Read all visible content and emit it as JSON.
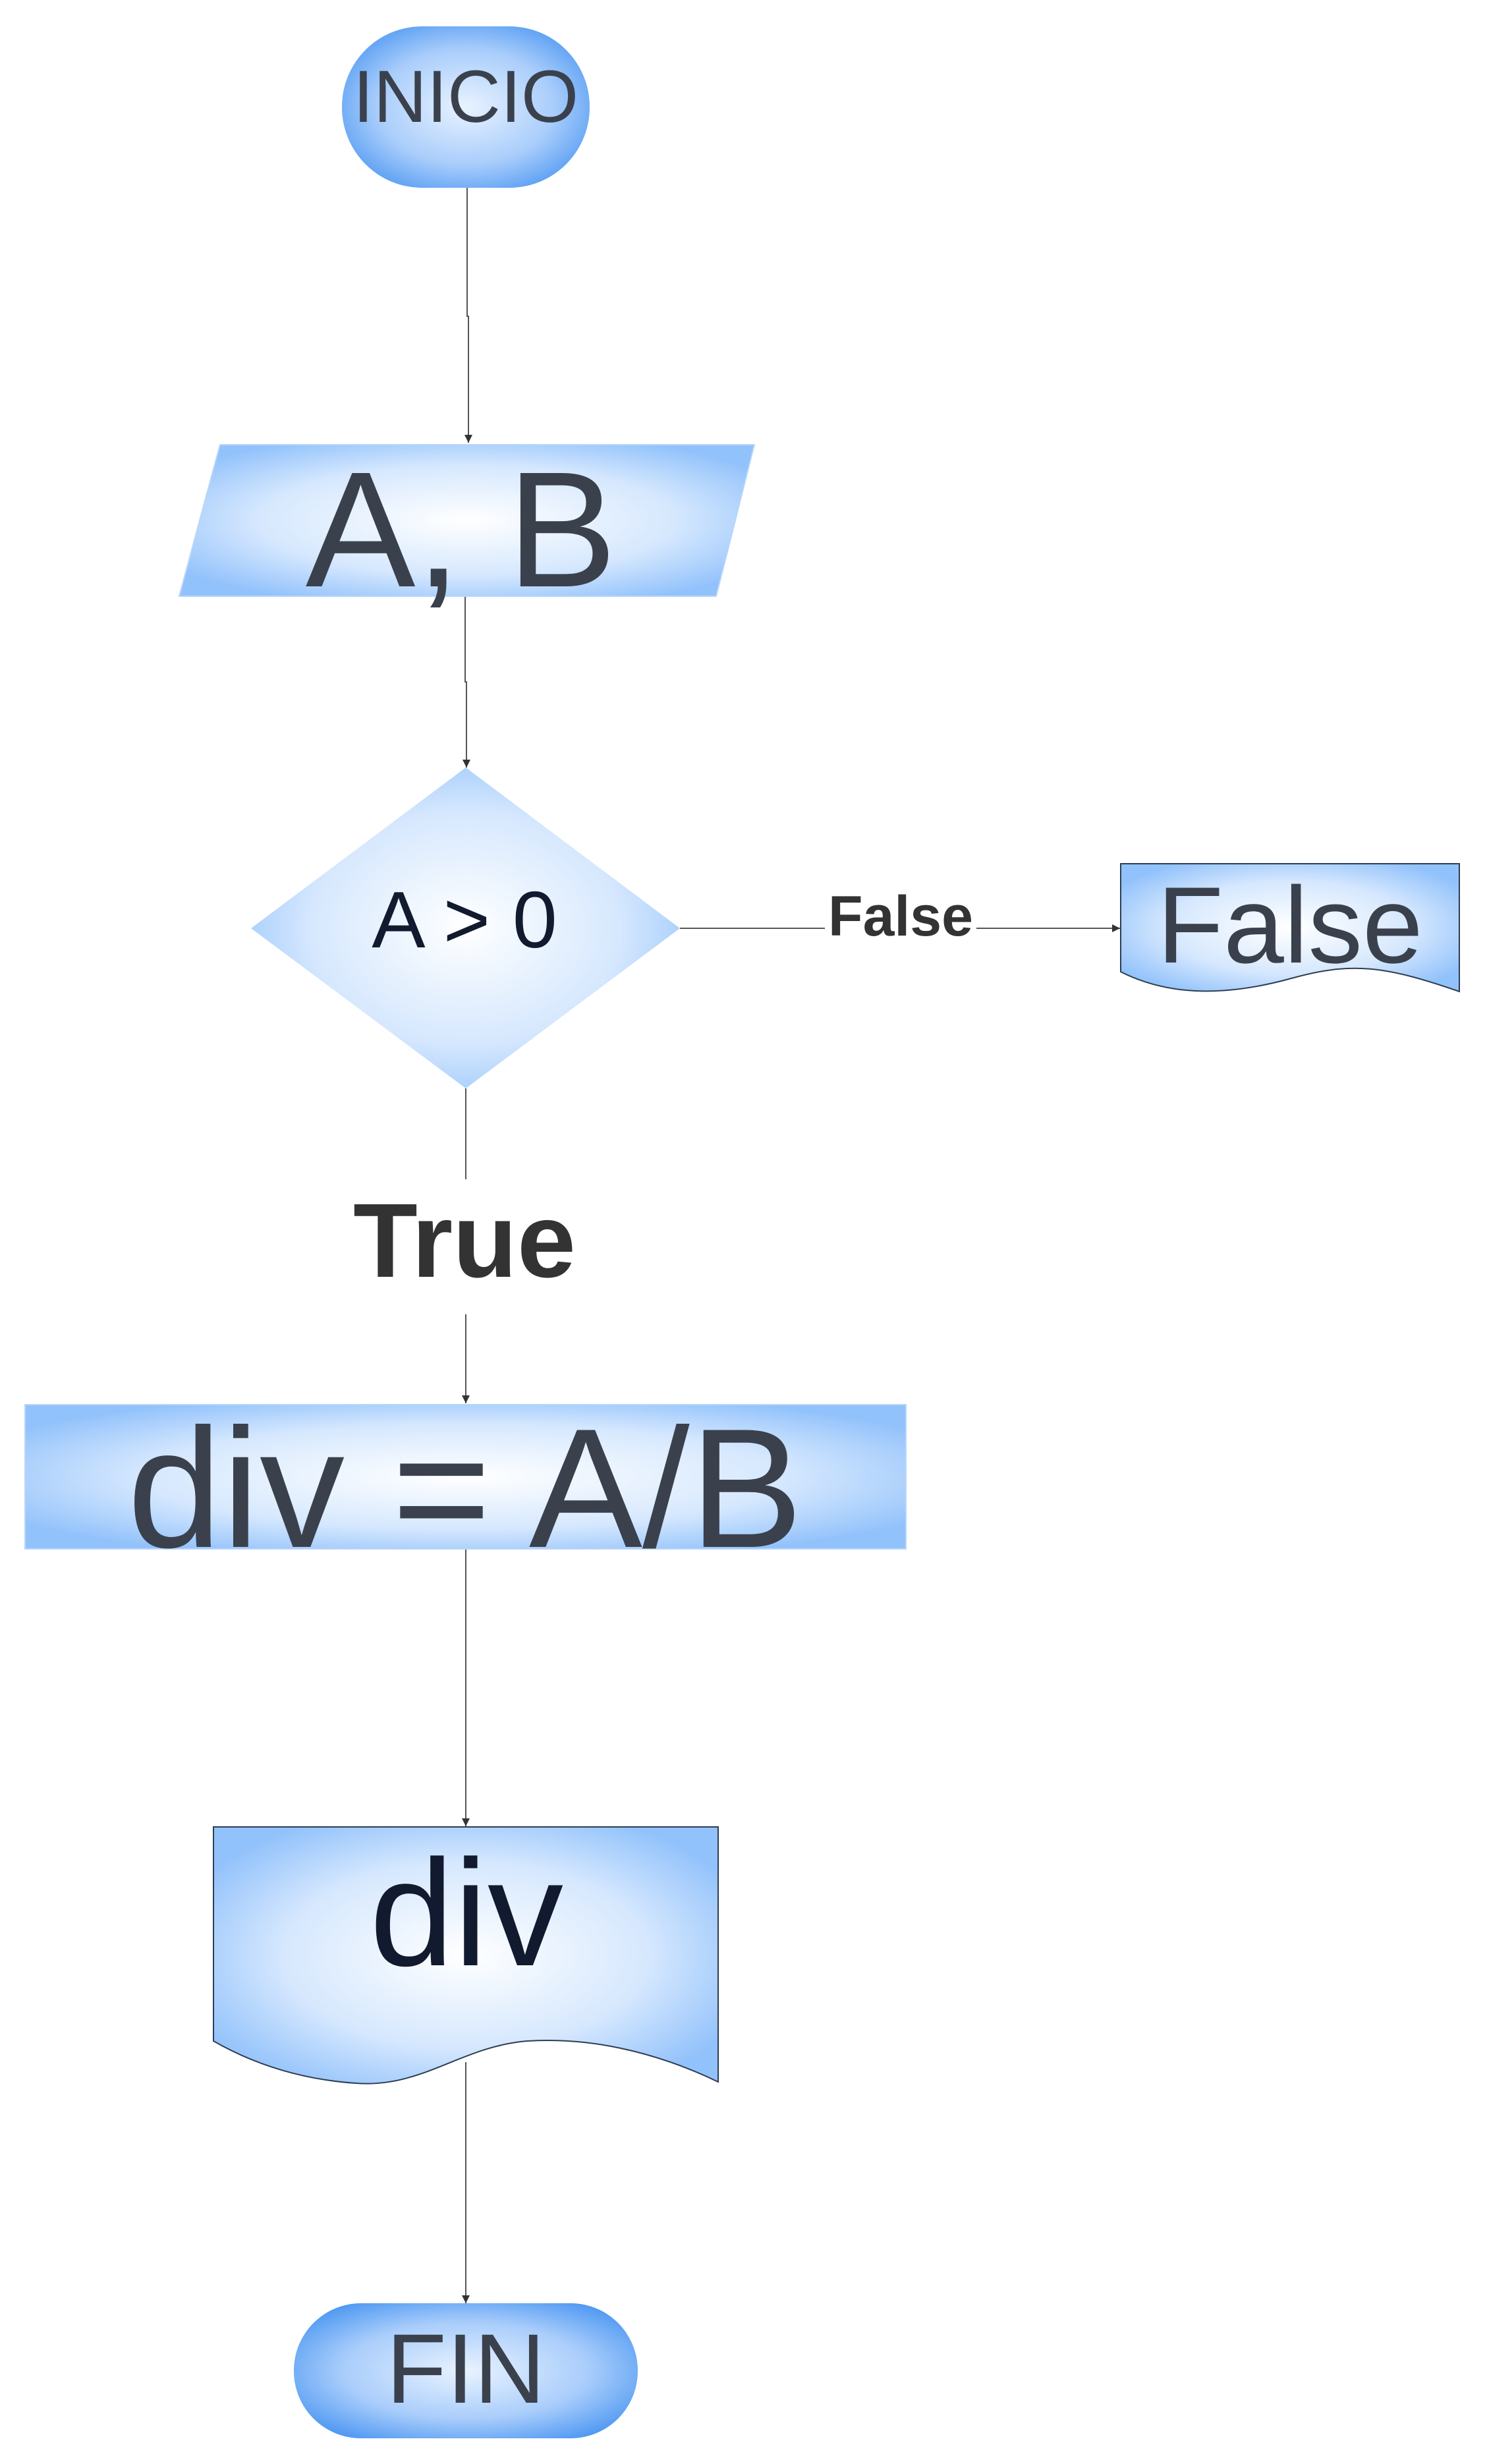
{
  "flowchart": {
    "start": {
      "label": "INICIO"
    },
    "input": {
      "label": "A, B"
    },
    "decision": {
      "label": "A > 0"
    },
    "edge_false": {
      "label": "False"
    },
    "false_output": {
      "label": "False"
    },
    "edge_true": {
      "label": "True"
    },
    "process": {
      "label": "div = A/B"
    },
    "output": {
      "label": "div"
    },
    "end": {
      "label": "FIN"
    }
  }
}
